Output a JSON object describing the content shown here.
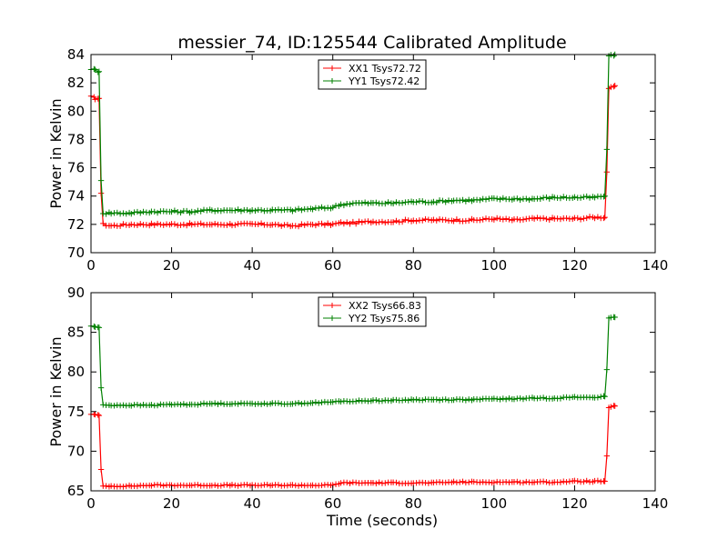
{
  "figure": {
    "title": "messier_74, ID:125544 Calibrated Amplitude"
  },
  "colors": {
    "xx": "#ff0000",
    "yy": "#008000",
    "frame": "#000000",
    "background": "#ffffff"
  },
  "chart_data": [
    {
      "type": "line",
      "title": "messier_74, ID:125544 Calibrated Amplitude",
      "xlabel": "",
      "ylabel": "Power in Kelvin",
      "xlim": [
        0,
        140
      ],
      "ylim": [
        70,
        84
      ],
      "xticks": [
        0,
        20,
        40,
        60,
        80,
        100,
        120,
        140
      ],
      "yticks": [
        70,
        72,
        74,
        76,
        78,
        80,
        82,
        84
      ],
      "grid": false,
      "legend_position": "top-center",
      "marker": "+",
      "series": [
        {
          "name": "XX1 Tsys72.72",
          "color": "#ff0000",
          "x": [
            0,
            1,
            2,
            2.5,
            3,
            5,
            10,
            15,
            20,
            25,
            30,
            35,
            40,
            45,
            48,
            50,
            55,
            60,
            62,
            65,
            70,
            75,
            80,
            85,
            90,
            95,
            100,
            105,
            110,
            115,
            120,
            125,
            127.5,
            128,
            128.5,
            129,
            130
          ],
          "y": [
            81.0,
            80.9,
            80.9,
            74.2,
            72.0,
            71.9,
            72.0,
            72.0,
            72.0,
            72.0,
            72.0,
            72.0,
            72.0,
            72.0,
            71.9,
            71.9,
            72.0,
            72.0,
            72.1,
            72.1,
            72.2,
            72.2,
            72.3,
            72.3,
            72.3,
            72.3,
            72.4,
            72.3,
            72.4,
            72.4,
            72.4,
            72.5,
            72.5,
            75.7,
            81.6,
            81.7,
            81.8
          ]
        },
        {
          "name": "YY1 Tsys72.42",
          "color": "#008000",
          "x": [
            0,
            1,
            2,
            2.5,
            3,
            5,
            10,
            15,
            20,
            25,
            30,
            35,
            40,
            45,
            50,
            55,
            60,
            62,
            65,
            70,
            75,
            80,
            85,
            90,
            95,
            100,
            105,
            110,
            115,
            120,
            125,
            127.5,
            128,
            128.5,
            129,
            130
          ],
          "y": [
            83.0,
            82.9,
            82.8,
            75.1,
            72.8,
            72.8,
            72.8,
            72.9,
            72.9,
            72.9,
            73.0,
            73.0,
            73.0,
            73.0,
            73.0,
            73.1,
            73.2,
            73.4,
            73.5,
            73.5,
            73.5,
            73.6,
            73.6,
            73.7,
            73.7,
            73.8,
            73.8,
            73.8,
            73.9,
            73.9,
            73.9,
            74.0,
            77.3,
            83.9,
            83.9,
            84.0
          ]
        }
      ]
    },
    {
      "type": "line",
      "title": "",
      "xlabel": "Time (seconds)",
      "ylabel": "Power in Kelvin",
      "xlim": [
        0,
        140
      ],
      "ylim": [
        65,
        90
      ],
      "xticks": [
        0,
        20,
        40,
        60,
        80,
        100,
        120,
        140
      ],
      "yticks": [
        65,
        70,
        75,
        80,
        85,
        90
      ],
      "grid": false,
      "legend_position": "top-center",
      "marker": "+",
      "series": [
        {
          "name": "XX2 Tsys66.83",
          "color": "#ff0000",
          "x": [
            0,
            1,
            2,
            2.5,
            3,
            5,
            10,
            15,
            20,
            25,
            30,
            35,
            40,
            45,
            50,
            55,
            60,
            62,
            65,
            70,
            75,
            80,
            85,
            90,
            95,
            100,
            105,
            110,
            115,
            120,
            125,
            127.5,
            128,
            128.5,
            129,
            130
          ],
          "y": [
            74.7,
            74.6,
            74.5,
            67.7,
            65.6,
            65.6,
            65.6,
            65.7,
            65.7,
            65.7,
            65.7,
            65.7,
            65.7,
            65.7,
            65.7,
            65.7,
            65.7,
            66.0,
            66.0,
            66.0,
            66.0,
            66.0,
            66.0,
            66.1,
            66.1,
            66.1,
            66.1,
            66.1,
            66.1,
            66.2,
            66.2,
            66.2,
            69.4,
            75.5,
            75.6,
            75.7
          ]
        },
        {
          "name": "YY2 Tsys75.86",
          "color": "#008000",
          "x": [
            0,
            1,
            2,
            2.5,
            3,
            5,
            10,
            15,
            20,
            25,
            30,
            35,
            40,
            45,
            50,
            55,
            60,
            62,
            65,
            70,
            75,
            80,
            85,
            90,
            95,
            100,
            105,
            110,
            115,
            120,
            125,
            127.5,
            128,
            128.5,
            129,
            130
          ],
          "y": [
            85.8,
            85.7,
            85.6,
            78.0,
            75.8,
            75.8,
            75.8,
            75.8,
            75.9,
            75.9,
            76.0,
            76.0,
            76.0,
            76.0,
            76.0,
            76.1,
            76.2,
            76.3,
            76.3,
            76.4,
            76.4,
            76.5,
            76.5,
            76.5,
            76.5,
            76.6,
            76.6,
            76.7,
            76.7,
            76.8,
            76.8,
            76.9,
            80.3,
            86.8,
            86.8,
            86.9
          ]
        }
      ]
    }
  ]
}
